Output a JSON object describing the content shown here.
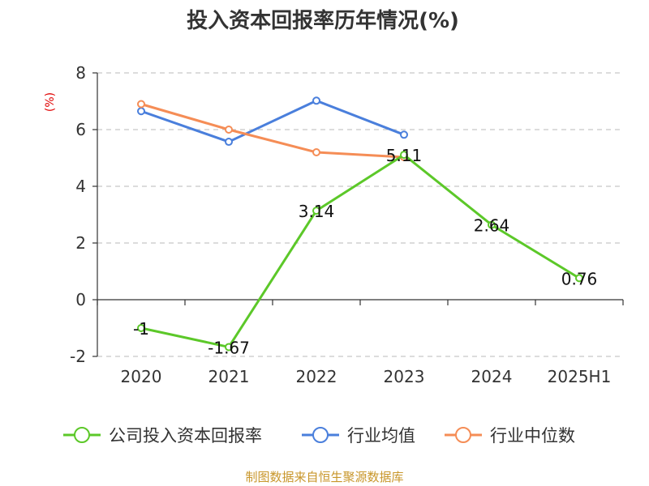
{
  "chart_data": {
    "type": "line",
    "title": "投入资本回报率历年情况(%)",
    "ylabel": "(%)",
    "categories": [
      "2020",
      "2021",
      "2022",
      "2023",
      "2024",
      "2025H1"
    ],
    "ylim": [
      -2,
      8
    ],
    "yticks": [
      -2,
      0,
      2,
      4,
      6,
      8
    ],
    "grid": true,
    "legend_position": "bottom",
    "series": [
      {
        "name": "公司投入资本回报率",
        "color": "#5cc829",
        "values": [
          -1,
          -1.67,
          3.14,
          5.11,
          2.64,
          0.76
        ],
        "labels": [
          "-1",
          "-1.67",
          "3.14",
          "5.11",
          "2.64",
          "0.76"
        ]
      },
      {
        "name": "行业均值",
        "color": "#4a7fdc",
        "values": [
          6.65,
          5.57,
          7.02,
          5.82,
          null,
          null
        ]
      },
      {
        "name": "行业中位数",
        "color": "#f58d56",
        "values": [
          6.9,
          6.0,
          5.2,
          5.03,
          null,
          null
        ]
      }
    ]
  },
  "source": "制图数据来自恒生聚源数据库"
}
